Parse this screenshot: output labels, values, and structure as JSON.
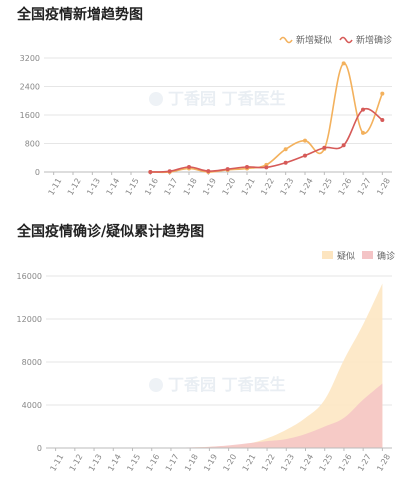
{
  "chart_data": [
    {
      "type": "line",
      "title": "全国疫情新增趋势图",
      "categories": [
        "1-11",
        "1-12",
        "1-13",
        "1-14",
        "1-15",
        "1-16",
        "1-17",
        "1-18",
        "1-19",
        "1-20",
        "1-21",
        "1-22",
        "1-23",
        "1-24",
        "1-25",
        "1-26",
        "1-27",
        "1-28"
      ],
      "ylim": [
        0,
        3200
      ],
      "yticks": [
        0,
        800,
        1600,
        2400,
        3200
      ],
      "grid": true,
      "legend_position": "top-right",
      "series": [
        {
          "name": "新增疑似",
          "color": "#f3b15d",
          "values": [
            null,
            null,
            null,
            null,
            null,
            0,
            0,
            100,
            0,
            60,
            100,
            200,
            640,
            880,
            650,
            3050,
            1100,
            2200
          ]
        },
        {
          "name": "新增确诊",
          "color": "#d65a58",
          "values": [
            null,
            null,
            null,
            null,
            null,
            0,
            20,
            140,
            25,
            80,
            140,
            130,
            260,
            460,
            680,
            750,
            1750,
            1460
          ]
        }
      ]
    },
    {
      "type": "area",
      "title": "全国疫情确诊/疑似累计趋势图",
      "categories": [
        "1-11",
        "1-12",
        "1-13",
        "1-14",
        "1-15",
        "1-16",
        "1-17",
        "1-18",
        "1-19",
        "1-20",
        "1-21",
        "1-22",
        "1-23",
        "1-24",
        "1-25",
        "1-26",
        "1-27",
        "1-28"
      ],
      "ylim": [
        0,
        16000
      ],
      "yticks": [
        0,
        4000,
        8000,
        12000,
        16000
      ],
      "grid": true,
      "legend_position": "top-right",
      "series": [
        {
          "name": "疑似",
          "color": "#fde5c0",
          "values": [
            0,
            0,
            0,
            0,
            0,
            0,
            0,
            50,
            120,
            200,
            400,
            900,
            1700,
            2800,
            4500,
            8200,
            11500,
            15300
          ]
        },
        {
          "name": "确诊",
          "color": "#f4c4c6",
          "values": [
            0,
            0,
            0,
            0,
            0,
            0,
            0,
            60,
            110,
            240,
            440,
            640,
            830,
            1300,
            2000,
            2800,
            4500,
            6000
          ]
        }
      ]
    }
  ],
  "watermark": "丁香园  丁香医生"
}
